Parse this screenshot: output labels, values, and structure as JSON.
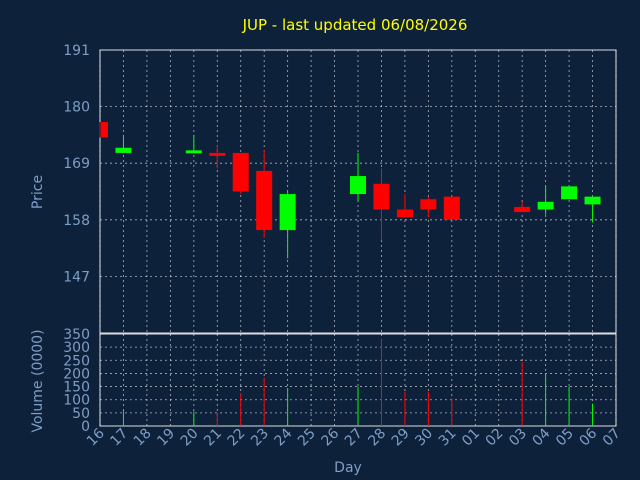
{
  "chart_data": {
    "type": "candlestick",
    "title": "JUP - last updated 06/08/2026",
    "xlabel": "Day",
    "price_panel": {
      "ylabel": "Price",
      "ylim": [
        136,
        191
      ],
      "yticks": [
        191,
        180,
        169,
        158,
        147
      ]
    },
    "volume_panel": {
      "ylabel": "Volume (0000)",
      "ylim": [
        0,
        350
      ],
      "yticks": [
        350,
        300,
        250,
        200,
        150,
        100,
        50,
        0
      ]
    },
    "x_ticks": [
      "16",
      "17",
      "18",
      "19",
      "20",
      "21",
      "22",
      "23",
      "24",
      "25",
      "26",
      "27",
      "28",
      "29",
      "30",
      "31",
      "01",
      "02",
      "03",
      "04",
      "05",
      "06",
      "07"
    ],
    "colors": {
      "up": "#00ff00",
      "down": "#ff0000"
    },
    "candles": [
      {
        "day": "16",
        "open": 177,
        "high": 177,
        "low": 174,
        "close": 174,
        "volume": 0
      },
      {
        "day": "17",
        "open": 171,
        "high": 174.5,
        "low": 171,
        "close": 172,
        "volume": 60
      },
      {
        "day": "20",
        "open": 171,
        "high": 174.5,
        "low": 171,
        "close": 171.5,
        "volume": 55
      },
      {
        "day": "21",
        "open": 171,
        "high": 172.5,
        "low": 168,
        "close": 170.5,
        "volume": 50
      },
      {
        "day": "22",
        "open": 171,
        "high": 171,
        "low": 163,
        "close": 163.5,
        "volume": 125
      },
      {
        "day": "23",
        "open": 167.5,
        "high": 171.5,
        "low": 154.5,
        "close": 156,
        "volume": 185
      },
      {
        "day": "24",
        "open": 156,
        "high": 163.5,
        "low": 150.5,
        "close": 163,
        "volume": 145
      },
      {
        "day": "27",
        "open": 163,
        "high": 171,
        "low": 161.5,
        "close": 166.5,
        "volume": 150
      },
      {
        "day": "28",
        "open": 165,
        "high": 168,
        "low": 154,
        "close": 160,
        "volume": 330
      },
      {
        "day": "29",
        "open": 160,
        "high": 163,
        "low": 158.5,
        "close": 158.5,
        "volume": 130
      },
      {
        "day": "30",
        "open": 162,
        "high": 162.5,
        "low": 158.5,
        "close": 160,
        "volume": 130
      },
      {
        "day": "31",
        "open": 162.5,
        "high": 162.5,
        "low": 158,
        "close": 158,
        "volume": 105
      },
      {
        "day": "03",
        "open": 160.5,
        "high": 161.5,
        "low": 159.5,
        "close": 159.5,
        "volume": 245
      },
      {
        "day": "04",
        "open": 160,
        "high": 164.5,
        "low": 159,
        "close": 161.5,
        "volume": 195
      },
      {
        "day": "05",
        "open": 162,
        "high": 164.5,
        "low": 162,
        "close": 164.5,
        "volume": 150
      },
      {
        "day": "06",
        "open": 161,
        "high": 162.5,
        "low": 157.5,
        "close": 162.5,
        "volume": 85
      }
    ]
  }
}
